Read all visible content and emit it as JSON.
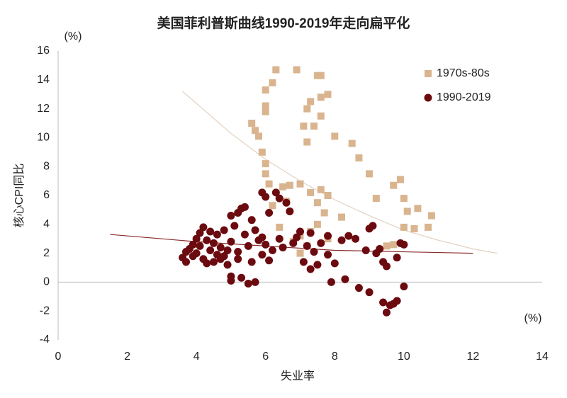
{
  "chart_data": {
    "type": "scatter",
    "title": "美国菲利普斯曲线1990-2019年走向扁平化",
    "x_label": "失业率",
    "y_label": "核心CPI同比",
    "x_unit_label": "(%)",
    "y_unit_label": "(%)",
    "xlim": [
      0,
      14
    ],
    "xticks": [
      0,
      2,
      4,
      6,
      8,
      10,
      12,
      14
    ],
    "ylim": [
      -4,
      16
    ],
    "yticks": [
      -4,
      -2,
      0,
      2,
      4,
      6,
      8,
      10,
      12,
      14,
      16
    ],
    "legend": "top-right",
    "grid": false,
    "series": [
      {
        "name": "1970s-80s",
        "color": "#d9b48f",
        "marker": "square",
        "x": [
          6.3,
          6.9,
          7.5,
          7.6,
          6.0,
          6.2,
          7.8,
          7.6,
          6.0,
          6.0,
          7.3,
          7.2,
          5.6,
          5.7,
          7.1,
          7.4,
          7.6,
          8.0,
          5.8,
          5.9,
          6.0,
          7.2,
          8.5,
          8.7,
          6.0,
          6.1,
          6.5,
          6.7,
          7.0,
          7.3,
          7.6,
          7.8,
          9.0,
          9.2,
          9.7,
          9.9,
          10.0,
          10.1,
          10.4,
          10.8,
          10.0,
          10.3,
          10.7,
          8.2,
          7.5,
          7.7,
          7.5,
          7.3,
          7.0,
          6.8,
          7.2,
          7.0,
          6.4,
          6.2,
          6.6,
          9.5,
          9.7,
          7.8
        ],
        "values": [
          14.7,
          14.7,
          14.3,
          14.3,
          13.3,
          13.8,
          13.0,
          12.8,
          12.2,
          11.8,
          12.5,
          12.0,
          11.0,
          10.5,
          10.8,
          10.8,
          11.5,
          10.1,
          10.1,
          9.0,
          8.2,
          9.7,
          9.6,
          8.6,
          7.5,
          6.8,
          6.6,
          6.7,
          6.8,
          6.2,
          6.4,
          6.0,
          7.5,
          5.8,
          6.7,
          7.1,
          5.8,
          4.9,
          5.1,
          4.6,
          3.8,
          3.7,
          3.8,
          4.5,
          5.5,
          4.8,
          4.0,
          3.5,
          3.2,
          2.8,
          2.5,
          2.0,
          3.8,
          5.3,
          5.6,
          2.5,
          2.6,
          3.0
        ]
      },
      {
        "name": "1990-2019",
        "color": "#6b0a0f",
        "marker": "circle",
        "x": [
          3.6,
          3.7,
          3.8,
          3.9,
          3.9,
          4.0,
          4.0,
          4.1,
          4.1,
          4.2,
          4.2,
          4.3,
          4.4,
          4.4,
          4.5,
          4.5,
          4.6,
          4.6,
          4.7,
          4.7,
          4.8,
          4.9,
          4.9,
          5.0,
          5.0,
          5.0,
          5.0,
          5.1,
          5.2,
          5.2,
          5.3,
          5.3,
          5.4,
          5.4,
          5.5,
          5.5,
          5.6,
          5.6,
          5.7,
          5.7,
          5.8,
          5.9,
          5.9,
          6.0,
          6.0,
          6.1,
          6.1,
          6.2,
          6.3,
          6.4,
          6.4,
          6.6,
          6.7,
          6.8,
          6.9,
          7.0,
          7.1,
          7.2,
          7.3,
          7.3,
          7.4,
          7.5,
          7.6,
          7.8,
          7.8,
          7.9,
          8.0,
          8.2,
          8.3,
          8.4,
          8.6,
          8.7,
          8.9,
          9.0,
          9.0,
          9.1,
          9.2,
          9.3,
          9.4,
          9.4,
          9.5,
          9.5,
          9.6,
          9.7,
          9.8,
          9.8,
          9.9,
          10.0,
          10.0,
          5.2,
          4.3,
          4.8,
          3.7,
          6.5,
          5.9
        ],
        "values": [
          1.7,
          2.1,
          2.3,
          1.8,
          2.6,
          3.0,
          2.0,
          3.4,
          2.5,
          3.8,
          1.6,
          2.9,
          3.5,
          2.2,
          1.4,
          2.7,
          3.3,
          1.9,
          2.4,
          1.6,
          3.6,
          2.2,
          1.2,
          2.8,
          4.6,
          0.4,
          0.1,
          3.9,
          4.8,
          2.1,
          5.1,
          0.3,
          5.2,
          3.3,
          2.5,
          -0.1,
          4.3,
          1.4,
          0.0,
          3.6,
          2.9,
          6.2,
          1.9,
          2.6,
          5.9,
          4.8,
          1.5,
          2.2,
          6.2,
          5.8,
          3.0,
          5.5,
          4.9,
          2.7,
          3.1,
          3.5,
          1.4,
          2.5,
          3.4,
          0.9,
          2.1,
          1.2,
          2.7,
          1.9,
          3.2,
          0.0,
          1.3,
          2.9,
          0.2,
          3.2,
          3.0,
          -0.4,
          2.2,
          -0.7,
          3.7,
          3.9,
          2.0,
          2.3,
          1.4,
          -1.4,
          -2.1,
          1.1,
          -1.6,
          -1.5,
          -1.3,
          1.7,
          2.7,
          -0.3,
          2.6,
          1.6,
          1.3,
          1.8,
          1.4,
          2.4,
          3.1
        ]
      }
    ],
    "trendlines": [
      {
        "color": "#e2d2c2",
        "x": [
          3.6,
          5,
          6,
          7,
          8,
          9,
          10,
          11,
          12,
          12.7
        ],
        "values": [
          13.2,
          10.3,
          8.5,
          7.0,
          5.7,
          4.6,
          3.6,
          2.9,
          2.3,
          2.0
        ]
      },
      {
        "color": "#8a2a2a",
        "x": [
          1.5,
          3,
          4,
          6,
          8,
          10,
          12
        ],
        "values": [
          3.3,
          3.0,
          2.8,
          2.5,
          2.2,
          2.1,
          2.0
        ]
      }
    ]
  }
}
